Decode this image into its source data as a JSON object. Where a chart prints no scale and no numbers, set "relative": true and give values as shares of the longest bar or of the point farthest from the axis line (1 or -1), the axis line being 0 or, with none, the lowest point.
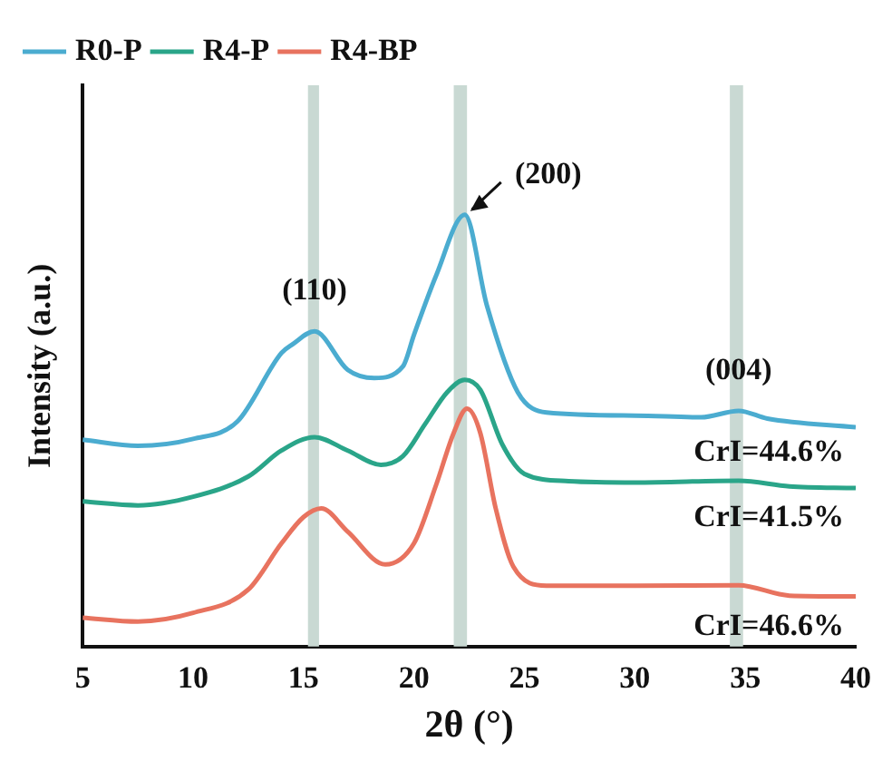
{
  "chart_data": {
    "type": "line",
    "xlabel": "2θ (°)",
    "ylabel": "Intensity (a.u.)",
    "relative": true,
    "legend": "top left",
    "xlim": [
      5,
      40
    ],
    "xticks": [
      5,
      10,
      15,
      20,
      25,
      30,
      35,
      40
    ],
    "series": [
      {
        "name": "R0-P",
        "color": "#4bacd0",
        "x": [
          5,
          7.5,
          10,
          12,
          14,
          14.5,
          15.5,
          17,
          18.2,
          19.5,
          20,
          21,
          22.3,
          23.3,
          24.7,
          26,
          30,
          33,
          34.7,
          36,
          40
        ],
        "values": [
          0.479,
          0.465,
          0.481,
          0.521,
          0.68,
          0.7,
          0.73,
          0.641,
          0.622,
          0.649,
          0.722,
          0.859,
          1.0,
          0.79,
          0.589,
          0.542,
          0.535,
          0.531,
          0.546,
          0.528,
          0.508
        ]
      },
      {
        "name": "R4-P",
        "color": "#2aa589",
        "x": [
          5,
          7.5,
          10,
          12.5,
          14,
          15.5,
          17,
          18.5,
          19.5,
          20.5,
          21.5,
          22.3,
          23,
          24,
          25,
          27,
          30,
          34.7,
          37,
          40
        ],
        "values": [
          0.336,
          0.327,
          0.347,
          0.394,
          0.454,
          0.485,
          0.454,
          0.421,
          0.441,
          0.515,
          0.589,
          0.618,
          0.595,
          0.468,
          0.4,
          0.383,
          0.38,
          0.384,
          0.371,
          0.367
        ]
      },
      {
        "name": "R4-BP",
        "color": "#e8735f",
        "x": [
          5,
          7.5,
          10,
          12.5,
          14,
          15,
          15.8,
          17,
          18.7,
          20,
          21,
          21.8,
          22.4,
          23,
          23.7,
          24.5,
          26,
          30,
          34.7,
          37,
          40
        ],
        "values": [
          0.067,
          0.058,
          0.078,
          0.132,
          0.239,
          0.3,
          0.32,
          0.266,
          0.19,
          0.239,
          0.374,
          0.495,
          0.551,
          0.495,
          0.32,
          0.185,
          0.141,
          0.141,
          0.142,
          0.118,
          0.116
        ]
      }
    ],
    "bands": [
      {
        "axis": "x",
        "from": 15.2,
        "to": 15.7,
        "color": "#c9d9d3"
      },
      {
        "axis": "x",
        "from": 21.8,
        "to": 22.4,
        "color": "#c9d9d3"
      },
      {
        "axis": "x",
        "from": 34.3,
        "to": 34.9,
        "color": "#c9d9d3"
      }
    ],
    "annotations": [
      {
        "text": "(110)",
        "x": 15.5,
        "y": 0.73
      },
      {
        "text": "(200)",
        "x": 22.3,
        "y": 1.0
      },
      {
        "text": "(004)",
        "x": 34.7,
        "y": 0.546
      },
      {
        "text": "CrI=44.6%",
        "x": 37.5,
        "y": 0.52
      },
      {
        "text": "CrI=41.5%",
        "x": 37.5,
        "y": 0.369
      },
      {
        "text": "CrI=46.6%",
        "x": 37.5,
        "y": 0.117
      }
    ]
  }
}
